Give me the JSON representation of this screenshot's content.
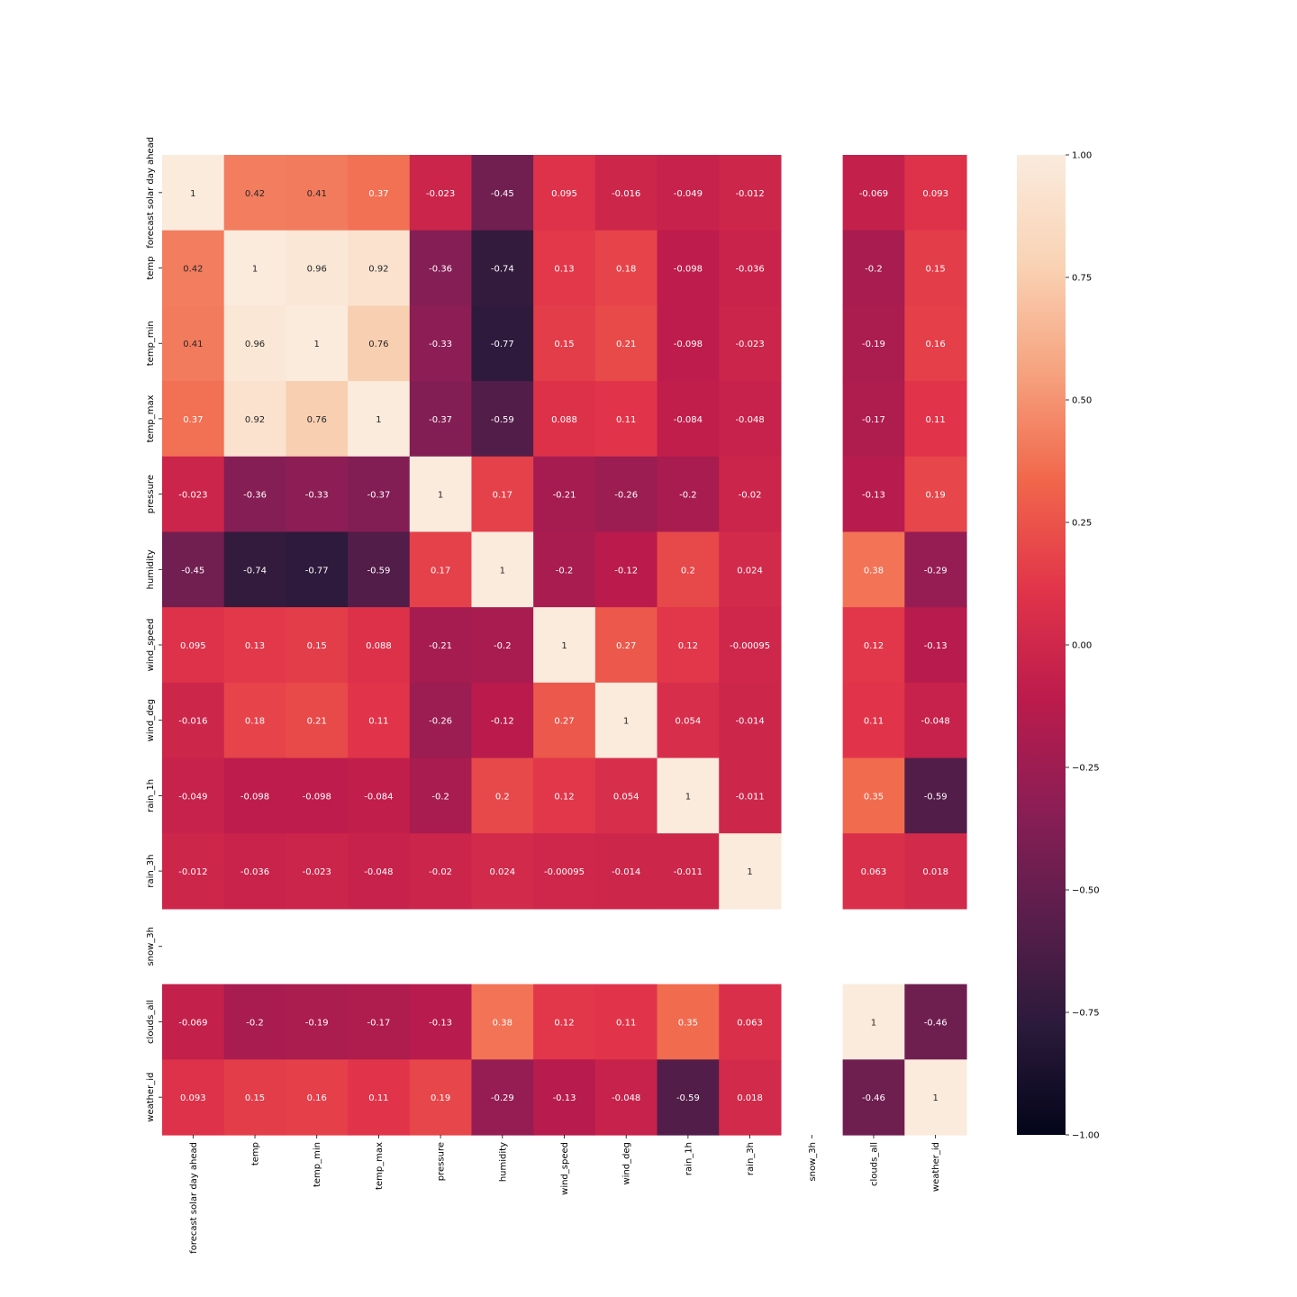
{
  "chart_data": {
    "type": "heatmap",
    "title": "",
    "xlabel": "",
    "ylabel": "",
    "labels": [
      "forecast solar day ahead",
      "temp",
      "temp_min",
      "temp_max",
      "pressure",
      "humidity",
      "wind_speed",
      "wind_deg",
      "rain_1h",
      "rain_3h",
      "snow_3h",
      "clouds_all",
      "weather_id"
    ],
    "values": [
      [
        1,
        0.42,
        0.41,
        0.37,
        -0.023,
        -0.45,
        0.095,
        -0.016,
        -0.049,
        -0.012,
        null,
        -0.069,
        0.093
      ],
      [
        0.42,
        1,
        0.96,
        0.92,
        -0.36,
        -0.74,
        0.13,
        0.18,
        -0.098,
        -0.036,
        null,
        -0.2,
        0.15
      ],
      [
        0.41,
        0.96,
        1,
        0.76,
        -0.33,
        -0.77,
        0.15,
        0.21,
        -0.098,
        -0.023,
        null,
        -0.19,
        0.16
      ],
      [
        0.37,
        0.92,
        0.76,
        1,
        -0.37,
        -0.59,
        0.088,
        0.11,
        -0.084,
        -0.048,
        null,
        -0.17,
        0.11
      ],
      [
        -0.023,
        -0.36,
        -0.33,
        -0.37,
        1,
        0.17,
        -0.21,
        -0.26,
        -0.2,
        -0.02,
        null,
        -0.13,
        0.19
      ],
      [
        -0.45,
        -0.74,
        -0.77,
        -0.59,
        0.17,
        1,
        -0.2,
        -0.12,
        0.2,
        0.024,
        null,
        0.38,
        -0.29
      ],
      [
        0.095,
        0.13,
        0.15,
        0.088,
        -0.21,
        -0.2,
        1,
        0.27,
        0.12,
        -0.00095,
        null,
        0.12,
        -0.13
      ],
      [
        -0.016,
        0.18,
        0.21,
        0.11,
        -0.26,
        -0.12,
        0.27,
        1,
        0.054,
        -0.014,
        null,
        0.11,
        -0.048
      ],
      [
        -0.049,
        -0.098,
        -0.098,
        -0.084,
        -0.2,
        0.2,
        0.12,
        0.054,
        1,
        -0.011,
        null,
        0.35,
        -0.59
      ],
      [
        -0.012,
        -0.036,
        -0.023,
        -0.048,
        -0.02,
        0.024,
        -0.00095,
        -0.014,
        -0.011,
        1,
        null,
        0.063,
        0.018
      ],
      [
        null,
        null,
        null,
        null,
        null,
        null,
        null,
        null,
        null,
        null,
        null,
        null,
        null
      ],
      [
        -0.069,
        -0.2,
        -0.19,
        -0.17,
        -0.13,
        0.38,
        0.12,
        0.11,
        0.35,
        0.063,
        null,
        1,
        -0.46
      ],
      [
        0.093,
        0.15,
        0.16,
        0.11,
        0.19,
        -0.29,
        -0.13,
        -0.048,
        -0.59,
        0.018,
        null,
        -0.46,
        1
      ]
    ],
    "colorbar": {
      "range": [
        -1,
        1
      ],
      "ticks": [
        1,
        0.75,
        0.5,
        0.25,
        0,
        -0.25,
        -0.5,
        -0.75,
        -1
      ],
      "tick_labels": [
        "1.00",
        "0.75",
        "0.50",
        "0.25",
        "0.00",
        "−0.25",
        "−0.50",
        "−0.75",
        "−1.00"
      ],
      "colormap": "rocket",
      "colormap_stops": [
        "#03051a",
        "#2b1a3b",
        "#5a1e4c",
        "#8b1e55",
        "#bc1b4c",
        "#e1344a",
        "#f1664b",
        "#f6a27e",
        "#f9d3b5",
        "#faebdd"
      ]
    },
    "annotation_colors": {
      "on_dark": "#ffffff",
      "on_light": "#262626"
    },
    "grid": false,
    "legend": "colorbar-right"
  }
}
